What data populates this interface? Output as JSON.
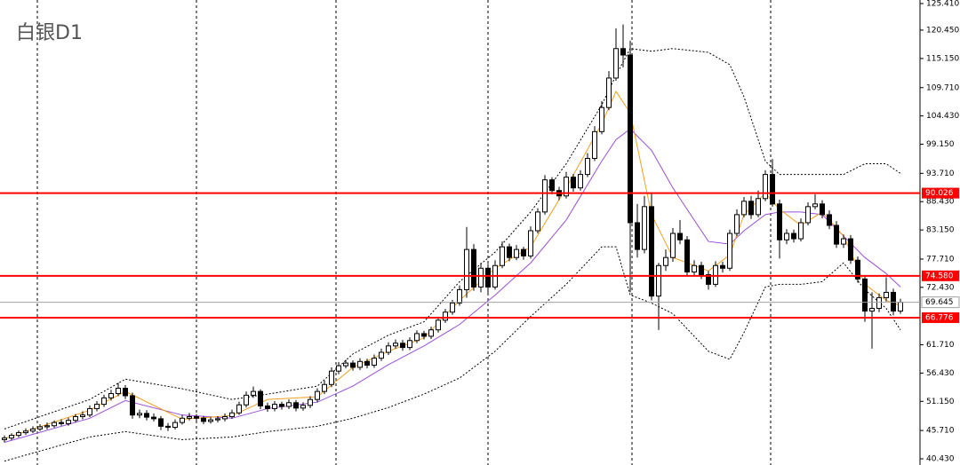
{
  "chart_data": {
    "type": "candlestick",
    "title": "白银D1",
    "ylim": [
      39.27,
      126.07
    ],
    "yticks": [
      {
        "value": 125.41,
        "label": "125.410"
      },
      {
        "value": 120.45,
        "label": "120.450"
      },
      {
        "value": 115.15,
        "label": "115.150"
      },
      {
        "value": 109.71,
        "label": "109.710"
      },
      {
        "value": 104.43,
        "label": "104.430"
      },
      {
        "value": 99.15,
        "label": "99.150"
      },
      {
        "value": 93.71,
        "label": "93.710"
      },
      {
        "value": 88.43,
        "label": "88.430"
      },
      {
        "value": 83.15,
        "label": "83.150"
      },
      {
        "value": 77.71,
        "label": "77.710"
      },
      {
        "value": 72.43,
        "label": "72.430"
      },
      {
        "value": 61.71,
        "label": "61.710"
      },
      {
        "value": 56.43,
        "label": "56.430"
      },
      {
        "value": 51.15,
        "label": "51.150"
      },
      {
        "value": 45.71,
        "label": "45.710"
      },
      {
        "value": 40.43,
        "label": "40.430"
      }
    ],
    "levels": [
      90.026,
      {
        "value": 74.58,
        "label": "74.580"
      },
      66.776
    ],
    "level_color": "#ff0000",
    "current_price": 69.645,
    "current_color": "#a0a0a0",
    "up_color": "#ffffff",
    "down_color": "#000000",
    "ohlc": [
      [
        44.0,
        44.8,
        43.5,
        44.3
      ],
      [
        44.3,
        45.2,
        43.9,
        44.8
      ],
      [
        44.8,
        45.7,
        44.4,
        45.3
      ],
      [
        45.3,
        46.1,
        44.9,
        45.6
      ],
      [
        45.6,
        46.5,
        45.2,
        46.0
      ],
      [
        46.0,
        46.9,
        45.6,
        46.4
      ],
      [
        46.4,
        47.2,
        45.9,
        46.6
      ],
      [
        46.6,
        47.6,
        46.2,
        47.2
      ],
      [
        47.2,
        47.8,
        46.6,
        47.0
      ],
      [
        47.0,
        48.1,
        46.6,
        47.6
      ],
      [
        47.6,
        48.8,
        47.2,
        48.3
      ],
      [
        48.3,
        49.3,
        47.8,
        48.6
      ],
      [
        48.6,
        50.4,
        48.2,
        49.8
      ],
      [
        49.8,
        51.2,
        49.3,
        50.6
      ],
      [
        50.6,
        52.4,
        50.1,
        51.8
      ],
      [
        51.8,
        53.3,
        51.3,
        52.6
      ],
      [
        52.6,
        54.6,
        52.1,
        53.6
      ],
      [
        53.6,
        54.2,
        51.6,
        52.2
      ],
      [
        52.2,
        52.8,
        47.9,
        48.6
      ],
      [
        48.6,
        49.6,
        48.0,
        48.9
      ],
      [
        48.9,
        49.5,
        47.6,
        48.2
      ],
      [
        48.2,
        48.9,
        47.4,
        47.9
      ],
      [
        47.9,
        48.4,
        45.8,
        46.5
      ],
      [
        46.5,
        47.1,
        45.6,
        46.3
      ],
      [
        46.3,
        47.8,
        45.9,
        47.2
      ],
      [
        47.2,
        48.6,
        46.8,
        48.0
      ],
      [
        48.0,
        49.0,
        47.6,
        48.3
      ],
      [
        48.3,
        48.8,
        47.5,
        48.0
      ],
      [
        48.0,
        48.4,
        46.9,
        47.4
      ],
      [
        47.4,
        48.2,
        47.0,
        47.7
      ],
      [
        47.7,
        48.4,
        47.2,
        47.9
      ],
      [
        47.9,
        48.9,
        47.4,
        48.3
      ],
      [
        48.3,
        49.6,
        47.9,
        49.0
      ],
      [
        49.0,
        51.1,
        48.6,
        50.5
      ],
      [
        50.5,
        53.0,
        50.0,
        52.3
      ],
      [
        52.3,
        53.9,
        51.8,
        53.0
      ],
      [
        53.0,
        53.4,
        49.7,
        50.3
      ],
      [
        50.3,
        50.9,
        49.2,
        49.8
      ],
      [
        49.8,
        51.2,
        49.3,
        50.6
      ],
      [
        50.6,
        51.1,
        49.6,
        50.2
      ],
      [
        50.2,
        51.5,
        49.7,
        50.9
      ],
      [
        50.9,
        51.4,
        49.3,
        49.9
      ],
      [
        49.9,
        51.0,
        49.4,
        50.4
      ],
      [
        50.4,
        52.1,
        49.9,
        51.5
      ],
      [
        51.5,
        53.6,
        51.0,
        53.0
      ],
      [
        53.0,
        55.0,
        52.5,
        54.3
      ],
      [
        54.3,
        57.5,
        53.8,
        56.8
      ],
      [
        56.8,
        58.5,
        56.2,
        57.8
      ],
      [
        57.8,
        58.9,
        57.3,
        58.3
      ],
      [
        58.3,
        58.8,
        56.9,
        57.5
      ],
      [
        57.5,
        59.2,
        57.0,
        58.6
      ],
      [
        58.6,
        59.1,
        57.3,
        57.9
      ],
      [
        57.9,
        59.9,
        57.4,
        59.2
      ],
      [
        59.2,
        61.0,
        58.7,
        60.3
      ],
      [
        60.3,
        62.2,
        59.8,
        61.5
      ],
      [
        61.5,
        62.7,
        61.0,
        62.0
      ],
      [
        62.0,
        62.6,
        60.6,
        61.2
      ],
      [
        61.2,
        63.1,
        60.7,
        62.5
      ],
      [
        62.5,
        64.4,
        62.0,
        63.8
      ],
      [
        63.8,
        64.3,
        62.7,
        63.3
      ],
      [
        63.3,
        65.1,
        62.8,
        64.5
      ],
      [
        64.5,
        66.9,
        64.0,
        66.3
      ],
      [
        66.3,
        68.4,
        65.8,
        67.8
      ],
      [
        67.8,
        70.1,
        67.3,
        69.5
      ],
      [
        69.5,
        72.8,
        69.0,
        72.0
      ],
      [
        72.0,
        83.7,
        70.5,
        79.5
      ],
      [
        79.5,
        80.5,
        71.8,
        72.5
      ],
      [
        72.5,
        77.0,
        71.5,
        76.0
      ],
      [
        76.0,
        76.8,
        71.0,
        72.5
      ],
      [
        72.5,
        77.5,
        72.0,
        76.5
      ],
      [
        76.5,
        81.0,
        76.0,
        80.0
      ],
      [
        80.0,
        80.6,
        77.3,
        78.0
      ],
      [
        78.0,
        80.3,
        77.5,
        79.5
      ],
      [
        79.5,
        80.0,
        77.6,
        78.3
      ],
      [
        78.3,
        83.8,
        77.8,
        83.0
      ],
      [
        83.0,
        87.2,
        82.5,
        86.5
      ],
      [
        86.5,
        93.4,
        86.0,
        92.5
      ],
      [
        92.5,
        93.0,
        89.8,
        90.5
      ],
      [
        90.5,
        91.2,
        88.7,
        89.5
      ],
      [
        89.5,
        94.0,
        89.0,
        93.0
      ],
      [
        93.0,
        93.6,
        90.3,
        91.0
      ],
      [
        91.0,
        94.3,
        90.5,
        93.5
      ],
      [
        93.5,
        97.5,
        93.0,
        96.5
      ],
      [
        96.5,
        102.5,
        96.0,
        101.5
      ],
      [
        101.5,
        107.2,
        101.0,
        106.0
      ],
      [
        106.0,
        112.8,
        105.5,
        111.5
      ],
      [
        111.5,
        120.8,
        111.0,
        117.0
      ],
      [
        117.0,
        121.5,
        113.5,
        115.8
      ],
      [
        115.8,
        118.5,
        71.5,
        84.5
      ],
      [
        84.5,
        88.0,
        78.0,
        79.5
      ],
      [
        79.5,
        89.5,
        78.8,
        87.5
      ],
      [
        87.5,
        90.0,
        70.0,
        70.8
      ],
      [
        70.8,
        77.0,
        64.5,
        76.5
      ],
      [
        76.5,
        79.5,
        75.5,
        78.0
      ],
      [
        78.0,
        83.5,
        77.2,
        82.5
      ],
      [
        82.5,
        85.0,
        80.5,
        81.3
      ],
      [
        81.3,
        82.0,
        74.5,
        75.3
      ],
      [
        75.3,
        77.5,
        74.5,
        76.5
      ],
      [
        76.5,
        77.2,
        74.0,
        74.8
      ],
      [
        74.8,
        75.5,
        72.0,
        73.0
      ],
      [
        73.0,
        77.3,
        72.5,
        76.5
      ],
      [
        76.5,
        77.2,
        75.2,
        76.0
      ],
      [
        76.0,
        83.2,
        75.5,
        82.5
      ],
      [
        82.5,
        87.0,
        82.0,
        86.0
      ],
      [
        86.0,
        89.3,
        85.5,
        88.5
      ],
      [
        88.5,
        89.5,
        85.2,
        86.0
      ],
      [
        86.0,
        90.5,
        85.5,
        89.0
      ],
      [
        89.0,
        94.3,
        88.5,
        93.5
      ],
      [
        93.5,
        96.4,
        87.5,
        88.0
      ],
      [
        88.0,
        88.8,
        77.8,
        81.3
      ],
      [
        81.3,
        83.3,
        80.5,
        82.5
      ],
      [
        82.5,
        83.2,
        80.8,
        81.5
      ],
      [
        81.5,
        85.3,
        81.0,
        84.5
      ],
      [
        84.5,
        88.3,
        84.0,
        87.5
      ],
      [
        87.5,
        89.8,
        87.0,
        88.0
      ],
      [
        88.0,
        88.7,
        85.3,
        86.0
      ],
      [
        86.0,
        86.8,
        83.3,
        84.0
      ],
      [
        84.0,
        84.8,
        79.8,
        80.5
      ],
      [
        80.5,
        82.3,
        79.8,
        81.5
      ],
      [
        81.5,
        82.2,
        76.8,
        77.5
      ],
      [
        77.5,
        78.2,
        73.3,
        74.0
      ],
      [
        74.0,
        74.7,
        66.0,
        68.0
      ],
      [
        68.0,
        71.5,
        61.0,
        68.5
      ],
      [
        68.5,
        71.3,
        67.8,
        70.5
      ],
      [
        70.5,
        74.3,
        69.8,
        71.5
      ],
      [
        71.5,
        72.2,
        67.2,
        68.0
      ],
      [
        68.0,
        70.3,
        67.5,
        69.645
      ]
    ],
    "indicators": [
      {
        "color": "#000000",
        "style": "dotted",
        "x": [
          0,
          12,
          17,
          25,
          32,
          37,
          44,
          49,
          54,
          59,
          64,
          69,
          74,
          79,
          84,
          86,
          88,
          91,
          94,
          99,
          102,
          104,
          107,
          109,
          112,
          115,
          118,
          121,
          124,
          126
        ],
        "values": [
          46,
          51.5,
          55.3,
          53.5,
          51.5,
          52.5,
          54,
          60,
          63.5,
          66,
          73.5,
          79,
          86.5,
          95.5,
          106.5,
          112,
          117,
          116.5,
          117,
          116.3,
          114,
          108,
          96,
          93.5,
          93.5,
          93.5,
          93.5,
          95.5,
          95.5,
          93.7
        ]
      },
      {
        "color": "#000000",
        "style": "dotted",
        "x": [
          0,
          12,
          17,
          25,
          32,
          37,
          44,
          49,
          54,
          59,
          64,
          69,
          74,
          79,
          84,
          86,
          88,
          91,
          94,
          99,
          102,
          104,
          107,
          109,
          112,
          115,
          118,
          121,
          124,
          126
        ],
        "values": [
          40,
          44.5,
          45.5,
          44,
          44.5,
          45.5,
          46.5,
          48,
          50,
          52.5,
          55.5,
          60.5,
          67,
          73,
          80,
          80,
          71,
          69.5,
          67.5,
          60.5,
          59,
          64,
          72.5,
          73,
          73,
          73.5,
          77,
          72,
          68.5,
          64.5
        ]
      },
      {
        "color": "#9b4fd9",
        "style": "solid",
        "x": [
          0,
          12,
          17,
          25,
          32,
          37,
          44,
          49,
          54,
          59,
          64,
          69,
          74,
          79,
          84,
          86,
          88,
          91,
          94,
          99,
          102,
          104,
          107,
          109,
          112,
          115,
          118,
          121,
          124,
          126
        ],
        "values": [
          43.5,
          48,
          51.3,
          48.6,
          48,
          49.8,
          51,
          54,
          58,
          61.5,
          65.5,
          71,
          77,
          85,
          96,
          100,
          102,
          98,
          91,
          81,
          80.5,
          83,
          86,
          86.5,
          86.5,
          86,
          82,
          78,
          75,
          72.5
        ]
      },
      {
        "color": "#f0a020",
        "style": "solid",
        "x": [
          0,
          12,
          17,
          25,
          32,
          37,
          44,
          49,
          54,
          59,
          64,
          69,
          74,
          79,
          84,
          86,
          88,
          91,
          94,
          99,
          102,
          104,
          107,
          109,
          112,
          115,
          118,
          121,
          124,
          126
        ],
        "values": [
          44.2,
          49.5,
          53,
          47.8,
          48.5,
          51.5,
          52,
          57.5,
          60.5,
          63,
          70,
          76,
          80,
          91,
          103,
          109,
          105,
          86,
          78,
          75.5,
          78.5,
          86,
          90,
          87,
          84,
          86.5,
          82,
          73,
          70,
          69
        ]
      }
    ]
  }
}
